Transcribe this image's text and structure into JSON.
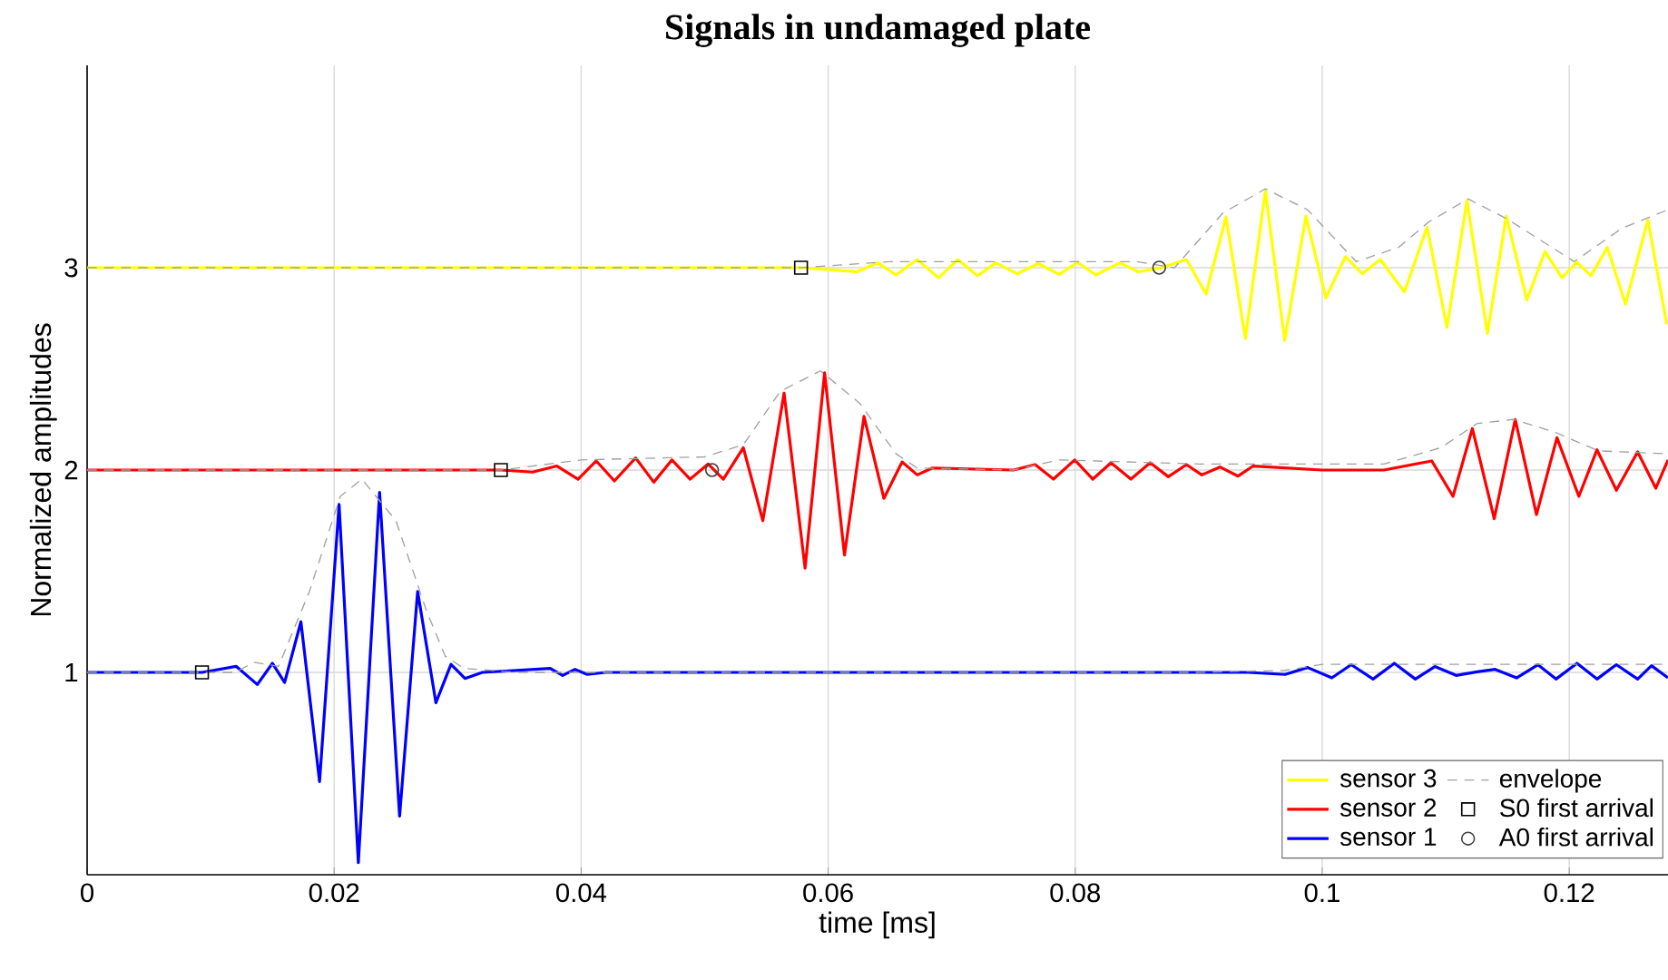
{
  "chart_data": {
    "type": "line",
    "title": "Signals in undamaged plate",
    "xlabel": "time [ms]",
    "ylabel": "Normalized amplitudes",
    "xlim": [
      0,
      0.128
    ],
    "ylim": [
      0,
      4
    ],
    "xticks": [
      0,
      0.02,
      0.04,
      0.06,
      0.08,
      0.1,
      0.12
    ],
    "yticks": [
      1,
      2,
      3
    ],
    "grid": true,
    "legend": "bottom right",
    "series": [
      {
        "name": "sensor 3",
        "color": "#ffff00",
        "line_style": "solid",
        "x": [
          0,
          0.0578,
          0.06231,
          0.06401,
          0.06549,
          0.06721,
          0.06893,
          0.07049,
          0.0721,
          0.07357,
          0.07529,
          0.07701,
          0.07872,
          0.08019,
          0.08166,
          0.08363,
          0.0851,
          0.08696,
          0.08901,
          0.09059,
          0.09221,
          0.09378,
          0.0954,
          0.09696,
          0.09868,
          0.10029,
          0.10187,
          0.10324,
          0.10471,
          0.10666,
          0.10849,
          0.1101,
          0.11172,
          0.11338,
          0.1149,
          0.11657,
          0.11804,
          0.11941,
          0.12063,
          0.12176,
          0.12309,
          0.12456,
          0.12637,
          0.1279
        ],
        "values": [
          3,
          3,
          2.98,
          3.024,
          2.964,
          3.04,
          2.95,
          3.04,
          2.96,
          3.024,
          2.97,
          3.02,
          2.967,
          3.027,
          2.964,
          3.024,
          2.98,
          3.0,
          3.04,
          2.87,
          3.25,
          2.65,
          3.38,
          2.64,
          3.255,
          2.85,
          3.054,
          2.97,
          3.04,
          2.88,
          3.2,
          2.705,
          3.33,
          2.675,
          3.255,
          2.84,
          3.08,
          2.95,
          3.027,
          2.96,
          3.1,
          2.82,
          3.235,
          2.72
        ]
      },
      {
        "name": "sensor 2",
        "color": "#ff0000",
        "line_style": "solid",
        "x": [
          0,
          0.0335,
          0.03607,
          0.03804,
          0.03975,
          0.04122,
          0.04269,
          0.04441,
          0.04588,
          0.04735,
          0.04882,
          0.05029,
          0.05151,
          0.05313,
          0.05471,
          0.05643,
          0.05813,
          0.05971,
          0.06132,
          0.0629,
          0.06451,
          0.06599,
          0.06721,
          0.06843,
          0.075,
          0.07676,
          0.07824,
          0.07996,
          0.08143,
          0.0829,
          0.08451,
          0.08607,
          0.08754,
          0.08901,
          0.09025,
          0.09172,
          0.09319,
          0.09441,
          0.1,
          0.105,
          0.10887,
          0.11059,
          0.11216,
          0.11393,
          0.11563,
          0.11735,
          0.11901,
          0.12078,
          0.12225,
          0.12382,
          0.12554,
          0.12701,
          0.128
        ],
        "values": [
          2,
          2,
          1.99,
          2.02,
          1.955,
          2.045,
          1.946,
          2.06,
          1.94,
          2.05,
          1.955,
          2.03,
          1.955,
          2.11,
          1.75,
          2.38,
          1.515,
          2.48,
          1.58,
          2.265,
          1.86,
          2.04,
          1.976,
          2.01,
          2.0,
          2.027,
          1.955,
          2.05,
          1.955,
          2.036,
          1.955,
          2.036,
          1.967,
          2.027,
          1.976,
          2.015,
          1.97,
          2.02,
          2.0,
          2.0,
          2.045,
          1.87,
          2.205,
          1.76,
          2.25,
          1.78,
          2.16,
          1.87,
          2.1,
          1.9,
          2.09,
          1.91,
          2.05
        ]
      },
      {
        "name": "sensor 1",
        "color": "#0000ff",
        "line_style": "solid",
        "x": [
          0,
          0.0093,
          0.01206,
          0.01378,
          0.015,
          0.01599,
          0.01731,
          0.01882,
          0.0204,
          0.02196,
          0.02368,
          0.0253,
          0.02676,
          0.02824,
          0.02946,
          0.03059,
          0.032,
          0.0375,
          0.0385,
          0.0395,
          0.0405,
          0.042,
          0.06,
          0.08,
          0.094,
          0.097,
          0.09882,
          0.10078,
          0.10235,
          0.10412,
          0.10584,
          0.10754,
          0.10912,
          0.11084,
          0.11254,
          0.11401,
          0.11574,
          0.11746,
          0.11893,
          0.12063,
          0.12225,
          0.12382,
          0.12554,
          0.12666,
          0.128
        ],
        "values": [
          1,
          1,
          1.03,
          0.94,
          1.045,
          0.95,
          1.25,
          0.46,
          1.83,
          0.06,
          1.89,
          0.29,
          1.4,
          0.85,
          1.04,
          0.97,
          1.0,
          1.02,
          0.985,
          1.015,
          0.99,
          1.0,
          1.0,
          1.0,
          1.0,
          0.99,
          1.024,
          0.973,
          1.038,
          0.967,
          1.045,
          0.967,
          1.029,
          0.985,
          1.003,
          1.015,
          0.973,
          1.038,
          0.967,
          1.045,
          0.967,
          1.038,
          0.967,
          1.033,
          0.973
        ]
      },
      {
        "name": "envelope",
        "color": "#a0a0a0",
        "line_style": "dashed",
        "x": [
          0,
          0.0578,
          0.065,
          0.085,
          0.08804,
          0.09196,
          0.0954,
          0.09882,
          0.10275,
          0.10618,
          0.10863,
          0.11181,
          0.115,
          0.1204,
          0.1243,
          0.128
        ],
        "values": [
          3,
          3,
          3.03,
          3.03,
          3.0,
          3.27,
          3.39,
          3.286,
          3.03,
          3.1,
          3.226,
          3.34,
          3.24,
          3.03,
          3.196,
          3.286
        ]
      },
      {
        "color": "#a0a0a0",
        "line_style": "dashed",
        "x": [
          0,
          0.0335,
          0.04,
          0.05,
          0.05313,
          0.05613,
          0.05937,
          0.06255,
          0.0655,
          0.0672,
          0.075,
          0.0787,
          0.09,
          0.105,
          0.1096,
          0.11254,
          0.11549,
          0.11893,
          0.12235,
          0.128
        ],
        "values": [
          2,
          2,
          2.05,
          2.065,
          2.125,
          2.39,
          2.49,
          2.33,
          2.08,
          2.01,
          2.0,
          2.05,
          2.03,
          2.03,
          2.11,
          2.23,
          2.25,
          2.185,
          2.095,
          2.08
        ]
      },
      {
        "color": "#a0a0a0",
        "line_style": "dashed",
        "x": [
          0,
          0.012,
          0.0135,
          0.0155,
          0.018,
          0.0205,
          0.02225,
          0.025,
          0.0275,
          0.029,
          0.0305,
          0.035,
          0.09,
          0.097,
          0.1,
          0.128
        ],
        "values": [
          1,
          1,
          1.05,
          1.03,
          1.4,
          1.87,
          1.955,
          1.75,
          1.3,
          1.08,
          1.02,
          1.0,
          1.0,
          1.01,
          1.04,
          1.04
        ]
      },
      {
        "name": "S0 first arrival",
        "color": "#000000",
        "type": "scatter",
        "marker": "square",
        "x": [
          0.0093,
          0.0335,
          0.0578
        ],
        "values": [
          1,
          2,
          3
        ]
      },
      {
        "name": "A0 first arrival",
        "color": "#404040",
        "type": "scatter",
        "marker": "circle",
        "x": [
          0.0506,
          0.0868
        ],
        "values": [
          2,
          3
        ]
      }
    ]
  }
}
